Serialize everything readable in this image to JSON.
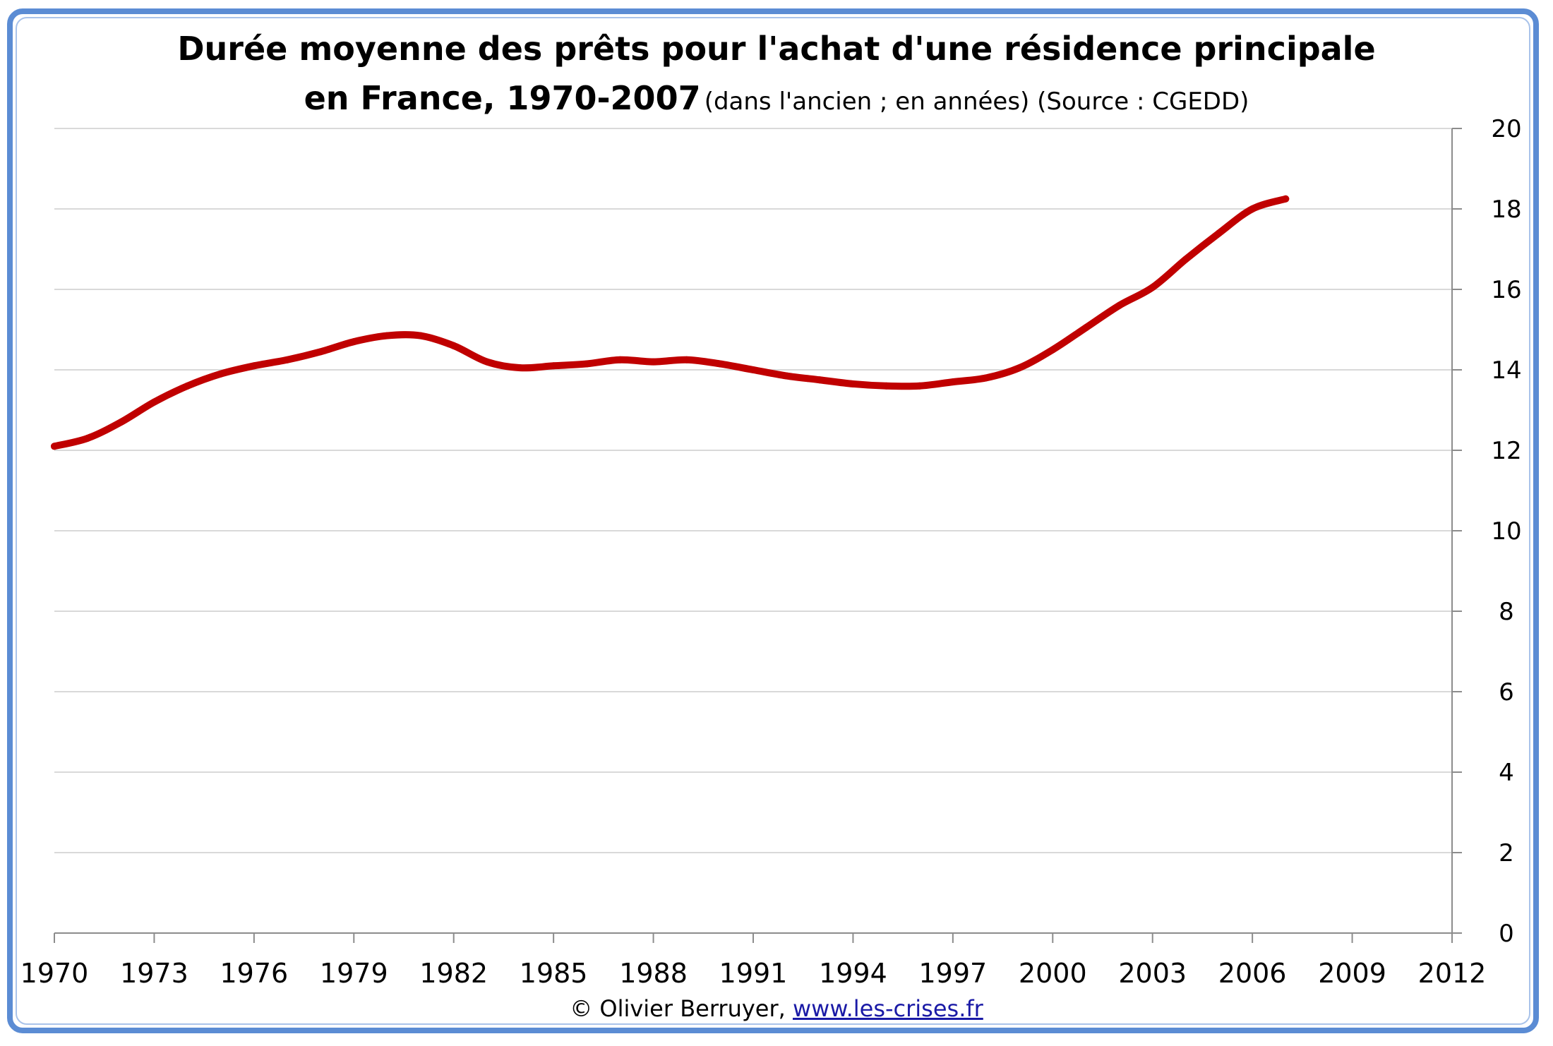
{
  "title_line1": "Durée moyenne des prêts pour l'achat d'une résidence principale",
  "title_line2_main": "en France, 1970-2007",
  "title_line2_sub": "(dans l'ancien ; en années) (Source : CGEDD)",
  "footer": {
    "copyright": "© Olivier Berruyer,",
    "link": "www.les-crises.fr"
  },
  "colors": {
    "line": "#c00000",
    "frame": "#5b8cd4",
    "grid": "#d9d9d9",
    "axis": "#8c8c8c"
  },
  "chart_data": {
    "type": "line",
    "title": "Durée moyenne des prêts pour l'achat d'une résidence principale en France, 1970-2007",
    "xlabel": "",
    "ylabel": "",
    "xlim": [
      1970,
      2012
    ],
    "ylim": [
      0,
      20
    ],
    "x_ticks": [
      1970,
      1973,
      1976,
      1979,
      1982,
      1985,
      1988,
      1991,
      1994,
      1997,
      2000,
      2003,
      2006,
      2009,
      2012
    ],
    "y_ticks": [
      0,
      2,
      4,
      6,
      8,
      10,
      12,
      14,
      16,
      18,
      20
    ],
    "y_axis_side": "right",
    "grid": "horizontal",
    "series": [
      {
        "name": "",
        "x": [
          1970,
          1971,
          1972,
          1973,
          1974,
          1975,
          1976,
          1977,
          1978,
          1979,
          1980,
          1981,
          1982,
          1983,
          1984,
          1985,
          1986,
          1987,
          1988,
          1989,
          1990,
          1991,
          1992,
          1993,
          1994,
          1995,
          1996,
          1997,
          1998,
          1999,
          2000,
          2001,
          2002,
          2003,
          2004,
          2005,
          2006,
          2007
        ],
        "y": [
          12.1,
          12.3,
          12.7,
          13.2,
          13.6,
          13.9,
          14.1,
          14.25,
          14.45,
          14.7,
          14.85,
          14.85,
          14.6,
          14.2,
          14.05,
          14.1,
          14.15,
          14.25,
          14.2,
          14.25,
          14.15,
          14.0,
          13.85,
          13.75,
          13.65,
          13.6,
          13.6,
          13.7,
          13.8,
          14.05,
          14.5,
          15.05,
          15.6,
          16.05,
          16.75,
          17.4,
          18.0,
          18.25
        ]
      }
    ]
  }
}
